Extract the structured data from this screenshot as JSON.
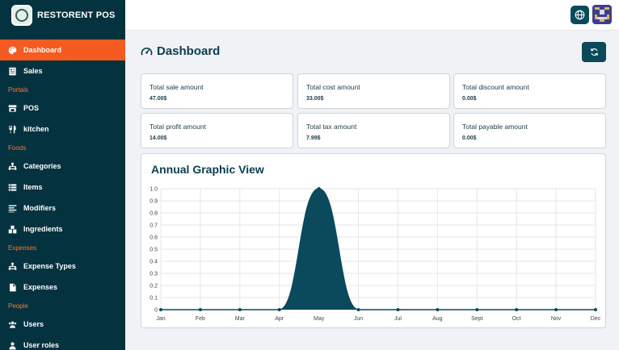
{
  "app": {
    "name": "RESTORENT POS"
  },
  "sidebar": {
    "items": [
      {
        "type": "item",
        "label": "Dashboard",
        "icon": "palette-icon",
        "active": true
      },
      {
        "type": "item",
        "label": "Sales",
        "icon": "receipt-icon"
      },
      {
        "type": "section",
        "label": "Portals"
      },
      {
        "type": "item",
        "label": "POS",
        "icon": "store-icon"
      },
      {
        "type": "item",
        "label": "kitchen",
        "icon": "utensils-icon"
      },
      {
        "type": "section",
        "label": "Foods"
      },
      {
        "type": "item",
        "label": "Categories",
        "icon": "sitemap-icon"
      },
      {
        "type": "item",
        "label": "Items",
        "icon": "list-icon"
      },
      {
        "type": "item",
        "label": "Modifiers",
        "icon": "lines-icon"
      },
      {
        "type": "item",
        "label": "Ingredients",
        "icon": "boxes-icon"
      },
      {
        "type": "section",
        "label": "Expenses"
      },
      {
        "type": "item",
        "label": "Expense Types",
        "icon": "sitemap-icon"
      },
      {
        "type": "item",
        "label": "Expenses",
        "icon": "file-icon"
      },
      {
        "type": "section",
        "label": "People"
      },
      {
        "type": "item",
        "label": "Users",
        "icon": "users-icon"
      },
      {
        "type": "item",
        "label": "User roles",
        "icon": "user-icon"
      }
    ]
  },
  "main": {
    "title": "Dashboard",
    "cards": [
      {
        "label": "Total sale amount",
        "value": "47.00$"
      },
      {
        "label": "Total cost amount",
        "value": "33.00$"
      },
      {
        "label": "Total discount amount",
        "value": "0.00$"
      },
      {
        "label": "Total profit amount",
        "value": "14.00$"
      },
      {
        "label": "Total tax amount",
        "value": "7.99$"
      },
      {
        "label": "Total payable amount",
        "value": "0.00$"
      }
    ],
    "chart_title": "Annual Graphic View"
  },
  "colors": {
    "sidebar": "#05323f",
    "accent": "#f55a21",
    "primary": "#0a4a5a",
    "chart_fill": "#0b4a5c"
  },
  "chart_data": {
    "type": "area",
    "title": "Annual Graphic View",
    "categories": [
      "Jan",
      "Feb",
      "Mar",
      "Apr",
      "May",
      "Jun",
      "Jul",
      "Aug",
      "Sept",
      "Oct",
      "Nov",
      "Dec"
    ],
    "series": [
      {
        "values": [
          0,
          0,
          0,
          0,
          1,
          0,
          0,
          0,
          0,
          0,
          0,
          0
        ]
      }
    ],
    "ylim": [
      0,
      1
    ],
    "yticks": [
      "0",
      "0.1",
      "0.2",
      "0.3",
      "0.4",
      "0.5",
      "0.6",
      "0.7",
      "0.8",
      "0.9",
      "1.0"
    ],
    "grid": true,
    "legend": "none"
  }
}
